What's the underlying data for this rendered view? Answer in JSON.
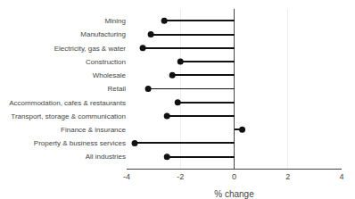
{
  "chart_data": {
    "type": "lollipop",
    "orientation": "horizontal",
    "categories": [
      "All industries",
      "Property & business services",
      "Finance & insurance",
      "Transport, storage & communication",
      "Accommodation, cafes & restaurants",
      "Retail",
      "Wholesale",
      "Construction",
      "Electricity, gas & water",
      "Manufacturing",
      "Mining"
    ],
    "values": [
      -2.5,
      -3.7,
      0.3,
      -2.5,
      -2.1,
      -3.2,
      -2.3,
      -2.0,
      -3.4,
      -3.1,
      -2.6
    ],
    "color": "#111111",
    "xlabel": "% change",
    "xlim": [
      -4,
      4
    ],
    "xticks": [
      -4,
      -2,
      0,
      2,
      4
    ],
    "grid": true
  }
}
